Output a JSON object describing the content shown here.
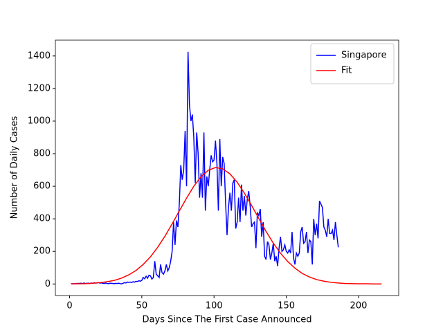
{
  "chart_data": {
    "type": "line",
    "xlabel": "Days Since The First Case Announced",
    "ylabel": "Number of Daily Cases",
    "xlim": [
      -9.8,
      227.8
    ],
    "ylim": [
      -71,
      1497
    ],
    "xticks": [
      0,
      50,
      100,
      150,
      200
    ],
    "yticks": [
      0,
      200,
      400,
      600,
      800,
      1000,
      1200,
      1400
    ],
    "legend": "upper right",
    "series": [
      {
        "name": "Singapore",
        "color": "#0000ff",
        "x": [
          1,
          2,
          3,
          4,
          5,
          6,
          7,
          8,
          9,
          10,
          11,
          12,
          13,
          14,
          15,
          16,
          17,
          18,
          19,
          20,
          21,
          22,
          23,
          24,
          25,
          26,
          27,
          28,
          29,
          30,
          31,
          32,
          33,
          34,
          35,
          36,
          37,
          38,
          39,
          40,
          41,
          42,
          43,
          44,
          45,
          46,
          47,
          48,
          49,
          50,
          51,
          52,
          53,
          54,
          55,
          56,
          57,
          58,
          59,
          60,
          61,
          62,
          63,
          64,
          65,
          66,
          67,
          68,
          69,
          70,
          71,
          72,
          73,
          74,
          75,
          76,
          77,
          78,
          79,
          80,
          81,
          82,
          83,
          84,
          85,
          86,
          87,
          88,
          89,
          90,
          91,
          92,
          93,
          94,
          95,
          96,
          97,
          98,
          99,
          100,
          101,
          102,
          103,
          104,
          105,
          106,
          107,
          108,
          109,
          110,
          111,
          112,
          113,
          114,
          115,
          116,
          117,
          118,
          119,
          120,
          121,
          122,
          123,
          124,
          125,
          126,
          127,
          128,
          129,
          130,
          131,
          132,
          133,
          134,
          135,
          136,
          137,
          138,
          139,
          140,
          141,
          142,
          143,
          144,
          145,
          146,
          147,
          148,
          149,
          150,
          151,
          152,
          153,
          154,
          155,
          156,
          157,
          158,
          159,
          160,
          161,
          162,
          163,
          164,
          165,
          166,
          167,
          168,
          169,
          170,
          171,
          172,
          173,
          174,
          175,
          176,
          177,
          178,
          179,
          180,
          181,
          182,
          183,
          184,
          185,
          186
        ],
        "values": [
          1,
          2,
          1,
          3,
          2,
          4,
          3,
          5,
          2,
          6,
          3,
          4,
          5,
          3,
          6,
          4,
          8,
          5,
          6,
          9,
          5,
          7,
          4,
          3,
          6,
          3,
          2,
          5,
          4,
          3,
          2,
          4,
          3,
          5,
          2,
          1,
          4,
          8,
          6,
          12,
          10,
          12,
          9,
          14,
          11,
          16,
          15,
          20,
          17,
          22,
          40,
          32,
          48,
          35,
          54,
          50,
          30,
          40,
          140,
          60,
          50,
          40,
          120,
          70,
          60,
          80,
          120,
          80,
          100,
          140,
          200,
          380,
          240,
          390,
          350,
          500,
          730,
          640,
          700,
          940,
          600,
          1426,
          1100,
          1000,
          1040,
          900,
          620,
          930,
          800,
          530,
          680,
          530,
          930,
          450,
          660,
          600,
          700,
          790,
          750,
          760,
          880,
          740,
          450,
          890,
          600,
          780,
          740,
          500,
          300,
          470,
          560,
          450,
          620,
          640,
          340,
          380,
          530,
          380,
          610,
          450,
          540,
          420,
          520,
          570,
          480,
          350,
          370,
          380,
          220,
          440,
          420,
          460,
          290,
          380,
          170,
          150,
          260,
          240,
          150,
          190,
          250,
          140,
          170,
          110,
          220,
          290,
          200,
          210,
          240,
          200,
          190,
          210,
          190,
          320,
          160,
          120,
          190,
          170,
          190,
          320,
          350,
          250,
          260,
          320,
          190,
          270,
          260,
          120,
          400,
          300,
          370,
          280,
          510,
          490,
          470,
          350,
          330,
          290,
          400,
          310,
          310,
          330,
          270,
          380,
          300,
          225
        ]
      },
      {
        "name": "Fit",
        "color": "#ff0000",
        "x": [
          1,
          6,
          11,
          16,
          21,
          26,
          31,
          36,
          41,
          46,
          51,
          56,
          61,
          66,
          71,
          76,
          81,
          86,
          91,
          96,
          101,
          106,
          111,
          116,
          121,
          126,
          131,
          136,
          141,
          146,
          151,
          156,
          161,
          166,
          171,
          176,
          181,
          186,
          191,
          196,
          201,
          206,
          211,
          216
        ],
        "values": [
          1,
          1,
          2,
          5,
          8,
          14,
          22,
          36,
          56,
          83,
          120,
          167,
          225,
          293,
          369,
          449,
          527,
          600,
          658,
          698,
          715,
          707,
          676,
          625,
          558,
          482,
          402,
          323,
          251,
          189,
          138,
          97,
          65,
          43,
          27,
          17,
          10,
          6,
          3,
          2,
          1,
          1,
          0,
          0
        ]
      }
    ]
  }
}
